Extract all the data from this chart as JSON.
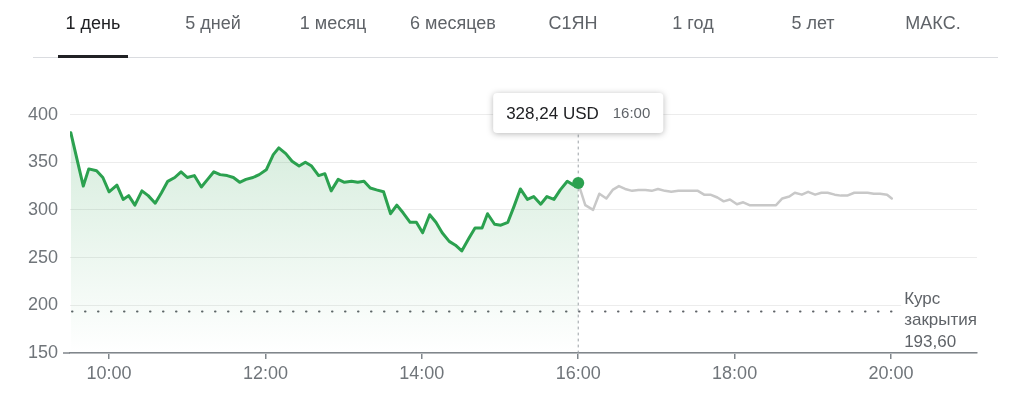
{
  "chart_data": {
    "type": "line",
    "annotations": [
      "1 день",
      "5 дней",
      "1 месяц",
      "6 месяцев",
      "С1ЯН",
      "1 год",
      "5 лет",
      "МАКС.",
      "328,24 USD 16:00"
    ],
    "series": [
      {
        "type": "area",
        "color": "#2ba14f",
        "x": [
          9.51,
          9.67,
          9.74,
          9.84,
          9.92,
          10.0,
          10.1,
          10.18,
          10.25,
          10.33,
          10.42,
          10.5,
          10.59,
          10.67,
          10.75,
          10.84,
          10.92,
          11.0,
          11.09,
          11.18,
          11.26,
          11.34,
          11.42,
          11.51,
          11.59,
          11.67,
          11.75,
          11.84,
          11.92,
          12.01,
          12.1,
          12.17,
          12.26,
          12.34,
          12.43,
          12.51,
          12.59,
          12.68,
          12.76,
          12.84,
          12.93,
          13.01,
          13.1,
          13.18,
          13.26,
          13.34,
          13.42,
          13.51,
          13.6,
          13.68,
          13.76,
          13.85,
          13.93,
          14.01,
          14.1,
          14.18,
          14.26,
          14.35,
          14.43,
          14.51,
          14.6,
          14.68,
          14.77,
          14.84,
          14.93,
          15.01,
          15.1,
          15.18,
          15.26,
          15.35,
          15.43,
          15.52,
          15.6,
          15.69,
          15.77,
          15.86,
          15.94,
          16
        ],
        "values": [
          381,
          325,
          343,
          341,
          334,
          319,
          326,
          311,
          315,
          305,
          320,
          315,
          307,
          318,
          330,
          334,
          340,
          334,
          336,
          324,
          332,
          340,
          337,
          336,
          334,
          329,
          332,
          334,
          337,
          342,
          358,
          365,
          359,
          351,
          346,
          350,
          346,
          336,
          338,
          320,
          332,
          329,
          330,
          329,
          330,
          323,
          321,
          319,
          296,
          305,
          297,
          287,
          287,
          276,
          295,
          287,
          276,
          267,
          263,
          257,
          270,
          281,
          281,
          296,
          285,
          284,
          287,
          304,
          322,
          311,
          314,
          306,
          314,
          311,
          321,
          330,
          326,
          328
        ]
      },
      {
        "color": "#c8c8c8",
        "x": [
          16,
          16.09,
          16.19,
          16.27,
          16.36,
          16.44,
          16.52,
          16.6,
          16.69,
          16.77,
          16.86,
          16.94,
          17.02,
          17.11,
          17.19,
          17.28,
          17.36,
          17.45,
          17.53,
          17.61,
          17.69,
          17.78,
          17.86,
          17.94,
          18.03,
          18.11,
          18.19,
          18.28,
          18.36,
          18.45,
          18.53,
          18.61,
          18.7,
          18.77,
          18.86,
          18.94,
          19.03,
          19.11,
          19.19,
          19.28,
          19.36,
          19.44,
          19.53,
          19.61,
          19.7,
          19.78,
          19.86,
          19.95,
          20.01
        ],
        "values": [
          328,
          305,
          300,
          317,
          312,
          321,
          325,
          322,
          320,
          321,
          321,
          320,
          322,
          320,
          319,
          320,
          320,
          320,
          320,
          316,
          316,
          313,
          309,
          311,
          306,
          308,
          305,
          305,
          305,
          305,
          305,
          312,
          314,
          318,
          316,
          319,
          316,
          318,
          318,
          316,
          315,
          315,
          318,
          318,
          318,
          317,
          317,
          316,
          312
        ]
      },
      {
        "type": "scatter",
        "color": "#2ba14f",
        "marker": "circle",
        "x": [
          16
        ],
        "values": [
          328.24
        ]
      }
    ],
    "xlim": [
      9.5,
      21.1
    ],
    "xticks": [
      {
        "value": 10,
        "label": "10:00"
      },
      {
        "value": 12,
        "label": "12:00"
      },
      {
        "value": 14,
        "label": "14:00"
      },
      {
        "value": 16,
        "label": "16:00"
      },
      {
        "value": 18,
        "label": "18:00"
      },
      {
        "value": 20,
        "label": "20:00"
      }
    ],
    "ylim": [
      150,
      410
    ],
    "yticks": [
      150,
      200,
      250,
      300,
      350,
      400
    ],
    "ref_lines": [
      {
        "axis": "y",
        "value": 193.6,
        "label": "Курс закрытия 193,60",
        "line_style": "dotted",
        "color": "#5f6368"
      },
      {
        "axis": "x",
        "value": 16,
        "line_style": "dotted",
        "color": "#9aa0a6"
      }
    ],
    "grid": "y"
  }
}
